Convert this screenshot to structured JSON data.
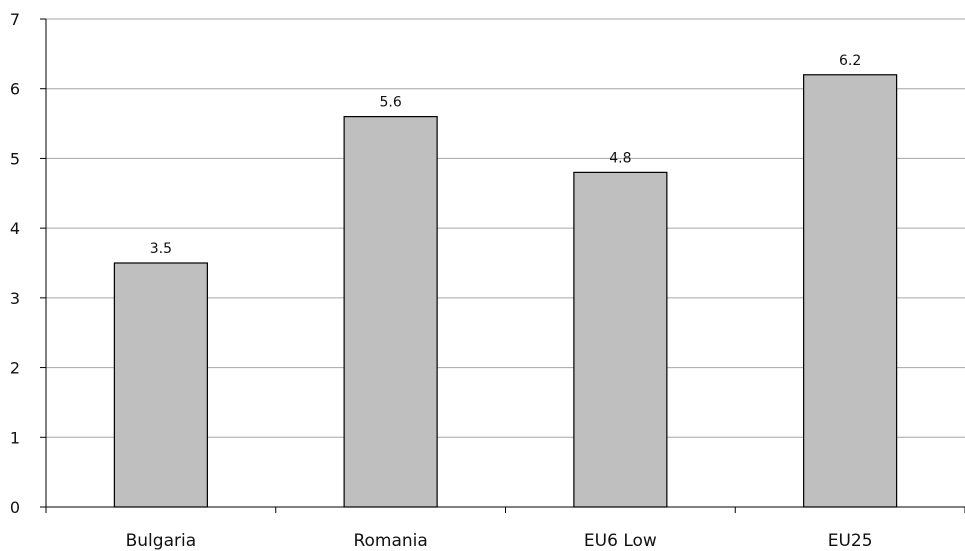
{
  "chart_data": {
    "type": "bar",
    "categories": [
      "Bulgaria",
      "Romania",
      "EU6 Low",
      "EU25"
    ],
    "values": [
      3.5,
      5.6,
      4.8,
      6.2
    ],
    "data_labels": [
      "3.5",
      "5.6",
      "4.8",
      "6.2"
    ],
    "title": "",
    "xlabel": "",
    "ylabel": "",
    "ylim": [
      0,
      7
    ],
    "yticks": [
      0,
      1,
      2,
      3,
      4,
      5,
      6,
      7
    ],
    "grid": true,
    "legend": "none",
    "colors": {
      "bar_fill": "#bfbfbf",
      "bar_stroke": "#000000",
      "grid": "#a6a6a6",
      "axis": "#000000"
    }
  }
}
